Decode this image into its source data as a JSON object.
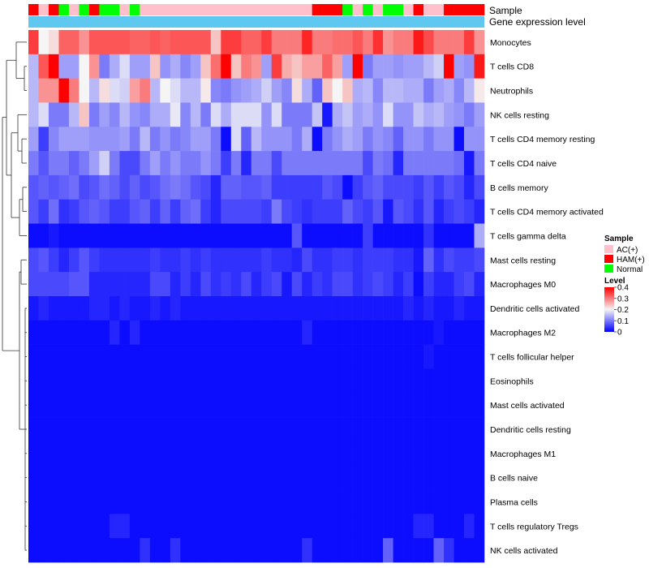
{
  "chart_data": {
    "type": "heatmap",
    "rows": [
      "Monocytes",
      "T cells CD8",
      "Neutrophils",
      "NK cells resting",
      "T cells CD4 memory resting",
      "T cells CD4 naive",
      "B cells memory",
      "T cells CD4 memory activated",
      "T cells gamma delta",
      "Mast cells resting",
      "Macrophages M0",
      "Dendritic cells activated",
      "Macrophages M2",
      "T cells follicular helper",
      "Eosinophils",
      "Mast cells activated",
      "Dendritic cells resting",
      "Macrophages M1",
      "B cells naive",
      "Plasma cells",
      "T cells regulatory  Tregs",
      "NK cells activated"
    ],
    "column_annotation_sample": [
      "HAM(+)",
      "AC(+)",
      "HAM(+)",
      "Normal",
      "AC(+)",
      "Normal",
      "HAM(+)",
      "Normal",
      "Normal",
      "AC(+)",
      "Normal",
      "AC(+)",
      "AC(+)",
      "AC(+)",
      "AC(+)",
      "AC(+)",
      "AC(+)",
      "AC(+)",
      "AC(+)",
      "AC(+)",
      "AC(+)",
      "AC(+)",
      "AC(+)",
      "AC(+)",
      "AC(+)",
      "AC(+)",
      "AC(+)",
      "AC(+)",
      "HAM(+)",
      "HAM(+)",
      "HAM(+)",
      "Normal",
      "AC(+)",
      "Normal",
      "AC(+)",
      "Normal",
      "Normal",
      "AC(+)",
      "HAM(+)",
      "AC(+)",
      "AC(+)",
      "HAM(+)",
      "HAM(+)",
      "HAM(+)",
      "HAM(+)"
    ],
    "column_annotation_gene_expression": "uniform",
    "values": [
      [
        0.35,
        0.2,
        0.22,
        0.32,
        0.32,
        0.28,
        0.33,
        0.33,
        0.33,
        0.33,
        0.32,
        0.32,
        0.33,
        0.32,
        0.33,
        0.33,
        0.33,
        0.33,
        0.24,
        0.35,
        0.35,
        0.32,
        0.32,
        0.35,
        0.3,
        0.3,
        0.3,
        0.37,
        0.3,
        0.3,
        0.31,
        0.31,
        0.33,
        0.3,
        0.36,
        0.28,
        0.3,
        0.3,
        0.38,
        0.34,
        0.3,
        0.3,
        0.3,
        0.35,
        0.28
      ],
      [
        0.15,
        0.33,
        0.4,
        0.13,
        0.13,
        0.2,
        0.28,
        0.1,
        0.14,
        0.18,
        0.13,
        0.13,
        0.24,
        0.12,
        0.14,
        0.11,
        0.13,
        0.24,
        0.31,
        0.4,
        0.24,
        0.3,
        0.28,
        0.13,
        0.35,
        0.26,
        0.24,
        0.27,
        0.27,
        0.32,
        0.27,
        0.13,
        0.4,
        0.1,
        0.13,
        0.13,
        0.12,
        0.13,
        0.13,
        0.15,
        0.17,
        0.4,
        0.13,
        0.12,
        0.38
      ],
      [
        0.15,
        0.28,
        0.28,
        0.4,
        0.3,
        0.2,
        0.15,
        0.22,
        0.18,
        0.17,
        0.27,
        0.3,
        0.15,
        0.2,
        0.18,
        0.15,
        0.15,
        0.21,
        0.11,
        0.1,
        0.12,
        0.13,
        0.14,
        0.17,
        0.13,
        0.11,
        0.22,
        0.14,
        0.08,
        0.24,
        0.2,
        0.24,
        0.14,
        0.15,
        0.11,
        0.15,
        0.15,
        0.14,
        0.14,
        0.1,
        0.13,
        0.14,
        0.11,
        0.15,
        0.21
      ],
      [
        0.15,
        0.18,
        0.1,
        0.1,
        0.15,
        0.24,
        0.1,
        0.13,
        0.11,
        0.15,
        0.12,
        0.11,
        0.14,
        0.14,
        0.19,
        0.11,
        0.15,
        0.1,
        0.18,
        0.14,
        0.18,
        0.18,
        0.18,
        0.12,
        0.18,
        0.1,
        0.1,
        0.1,
        0.16,
        0.02,
        0.14,
        0.16,
        0.13,
        0.14,
        0.12,
        0.18,
        0.12,
        0.12,
        0.16,
        0.14,
        0.15,
        0.13,
        0.12,
        0.1,
        0.13
      ],
      [
        0.13,
        0.05,
        0.11,
        0.13,
        0.13,
        0.13,
        0.12,
        0.12,
        0.12,
        0.13,
        0.1,
        0.15,
        0.1,
        0.12,
        0.1,
        0.11,
        0.13,
        0.13,
        0.1,
        0.01,
        0.18,
        0.08,
        0.15,
        0.12,
        0.12,
        0.12,
        0.1,
        0.14,
        0.01,
        0.1,
        0.12,
        0.14,
        0.13,
        0.1,
        0.12,
        0.11,
        0.08,
        0.12,
        0.12,
        0.1,
        0.12,
        0.12,
        0.01,
        0.12,
        0.12
      ],
      [
        0.1,
        0.07,
        0.1,
        0.1,
        0.08,
        0.1,
        0.13,
        0.17,
        0.1,
        0.06,
        0.06,
        0.1,
        0.13,
        0.1,
        0.12,
        0.1,
        0.1,
        0.12,
        0.1,
        0.05,
        0.1,
        0.03,
        0.1,
        0.1,
        0.06,
        0.1,
        0.1,
        0.1,
        0.1,
        0.1,
        0.1,
        0.1,
        0.1,
        0.06,
        0.1,
        0.09,
        0.03,
        0.1,
        0.1,
        0.1,
        0.1,
        0.1,
        0.09,
        0.02,
        0.1
      ],
      [
        0.07,
        0.08,
        0.07,
        0.08,
        0.09,
        0.06,
        0.07,
        0.09,
        0.08,
        0.06,
        0.08,
        0.06,
        0.07,
        0.09,
        0.1,
        0.09,
        0.07,
        0.06,
        0.03,
        0.08,
        0.08,
        0.07,
        0.07,
        0.08,
        0.05,
        0.05,
        0.05,
        0.05,
        0.05,
        0.07,
        0.06,
        0.01,
        0.05,
        0.07,
        0.08,
        0.06,
        0.06,
        0.06,
        0.05,
        0.07,
        0.05,
        0.07,
        0.06,
        0.03,
        0.06
      ],
      [
        0.07,
        0.05,
        0.09,
        0.04,
        0.05,
        0.07,
        0.08,
        0.07,
        0.05,
        0.05,
        0.07,
        0.08,
        0.05,
        0.08,
        0.05,
        0.08,
        0.09,
        0.05,
        0.03,
        0.06,
        0.06,
        0.06,
        0.06,
        0.05,
        0.1,
        0.06,
        0.05,
        0.04,
        0.05,
        0.05,
        0.05,
        0.08,
        0.06,
        0.05,
        0.07,
        0.02,
        0.07,
        0.06,
        0.04,
        0.07,
        0.03,
        0.05,
        0.06,
        0.05,
        0.03
      ],
      [
        0.01,
        0.01,
        0.02,
        0.01,
        0.01,
        0.01,
        0.01,
        0.01,
        0.01,
        0.01,
        0.01,
        0.01,
        0.01,
        0.01,
        0.01,
        0.01,
        0.01,
        0.01,
        0.01,
        0.01,
        0.01,
        0.01,
        0.01,
        0.01,
        0.01,
        0.01,
        0.07,
        0.01,
        0.01,
        0.01,
        0.01,
        0.01,
        0.01,
        0.05,
        0.01,
        0.01,
        0.01,
        0.01,
        0.01,
        0.04,
        0.01,
        0.01,
        0.01,
        0.01,
        0.14
      ],
      [
        0.06,
        0.07,
        0.05,
        0.03,
        0.05,
        0.07,
        0.05,
        0.04,
        0.04,
        0.04,
        0.04,
        0.04,
        0.05,
        0.04,
        0.04,
        0.05,
        0.04,
        0.05,
        0.04,
        0.04,
        0.04,
        0.04,
        0.04,
        0.05,
        0.04,
        0.04,
        0.03,
        0.06,
        0.04,
        0.04,
        0.05,
        0.05,
        0.04,
        0.05,
        0.05,
        0.05,
        0.04,
        0.04,
        0.02,
        0.08,
        0.04,
        0.06,
        0.05,
        0.05,
        0.06
      ],
      [
        0.06,
        0.06,
        0.06,
        0.06,
        0.07,
        0.07,
        0.03,
        0.03,
        0.03,
        0.03,
        0.03,
        0.03,
        0.06,
        0.06,
        0.03,
        0.05,
        0.03,
        0.06,
        0.04,
        0.05,
        0.04,
        0.06,
        0.03,
        0.05,
        0.06,
        0.02,
        0.06,
        0.03,
        0.05,
        0.04,
        0.06,
        0.06,
        0.04,
        0.05,
        0.06,
        0.05,
        0.03,
        0.05,
        0.01,
        0.05,
        0.03,
        0.03,
        0.05,
        0.06,
        0.03
      ],
      [
        0.02,
        0.03,
        0.02,
        0.02,
        0.02,
        0.02,
        0.03,
        0.03,
        0.02,
        0.03,
        0.02,
        0.02,
        0.03,
        0.02,
        0.03,
        0.02,
        0.02,
        0.02,
        0.02,
        0.02,
        0.02,
        0.02,
        0.02,
        0.02,
        0.02,
        0.02,
        0.02,
        0.02,
        0.02,
        0.02,
        0.02,
        0.02,
        0.02,
        0.02,
        0.02,
        0.02,
        0.02,
        0.03,
        0.02,
        0.03,
        0.02,
        0.02,
        0.03,
        0.02,
        0.02
      ],
      [
        0.01,
        0.01,
        0.01,
        0.01,
        0.01,
        0.01,
        0.01,
        0.01,
        0.03,
        0.01,
        0.03,
        0.01,
        0.01,
        0.01,
        0.01,
        0.01,
        0.01,
        0.01,
        0.01,
        0.01,
        0.01,
        0.01,
        0.01,
        0.01,
        0.01,
        0.01,
        0.01,
        0.03,
        0.01,
        0.01,
        0.01,
        0.01,
        0.01,
        0.01,
        0.01,
        0.01,
        0.01,
        0.01,
        0.01,
        0.01,
        0.02,
        0.01,
        0.01,
        0.01,
        0.01
      ],
      [
        0.01,
        0.01,
        0.01,
        0.01,
        0.01,
        0.01,
        0.01,
        0.01,
        0.01,
        0.01,
        0.01,
        0.01,
        0.01,
        0.01,
        0.01,
        0.01,
        0.01,
        0.01,
        0.01,
        0.01,
        0.01,
        0.01,
        0.01,
        0.01,
        0.01,
        0.01,
        0.01,
        0.01,
        0.01,
        0.01,
        0.01,
        0.01,
        0.01,
        0.01,
        0.01,
        0.01,
        0.01,
        0.01,
        0.01,
        0.02,
        0.01,
        0.01,
        0.01,
        0.01,
        0.01
      ],
      [
        0.01,
        0.01,
        0.01,
        0.01,
        0.01,
        0.01,
        0.01,
        0.01,
        0.01,
        0.01,
        0.01,
        0.01,
        0.01,
        0.01,
        0.01,
        0.01,
        0.01,
        0.01,
        0.01,
        0.01,
        0.01,
        0.01,
        0.01,
        0.01,
        0.01,
        0.01,
        0.01,
        0.01,
        0.01,
        0.01,
        0.01,
        0.01,
        0.01,
        0.01,
        0.01,
        0.01,
        0.01,
        0.01,
        0.01,
        0.01,
        0.01,
        0.01,
        0.01,
        0.01,
        0.01
      ],
      [
        0.01,
        0.01,
        0.01,
        0.01,
        0.01,
        0.01,
        0.01,
        0.01,
        0.01,
        0.01,
        0.01,
        0.01,
        0.01,
        0.01,
        0.01,
        0.01,
        0.01,
        0.01,
        0.01,
        0.01,
        0.01,
        0.01,
        0.01,
        0.01,
        0.01,
        0.01,
        0.01,
        0.01,
        0.01,
        0.01,
        0.01,
        0.01,
        0.01,
        0.01,
        0.01,
        0.01,
        0.01,
        0.01,
        0.01,
        0.01,
        0.01,
        0.01,
        0.01,
        0.01,
        0.01
      ],
      [
        0.01,
        0.01,
        0.01,
        0.01,
        0.01,
        0.01,
        0.01,
        0.01,
        0.01,
        0.01,
        0.01,
        0.01,
        0.01,
        0.01,
        0.01,
        0.01,
        0.01,
        0.01,
        0.01,
        0.01,
        0.01,
        0.01,
        0.01,
        0.01,
        0.01,
        0.01,
        0.01,
        0.01,
        0.01,
        0.01,
        0.01,
        0.01,
        0.01,
        0.01,
        0.01,
        0.01,
        0.01,
        0.01,
        0.01,
        0.01,
        0.01,
        0.01,
        0.01,
        0.01,
        0.01
      ],
      [
        0.01,
        0.01,
        0.01,
        0.01,
        0.01,
        0.01,
        0.01,
        0.01,
        0.01,
        0.01,
        0.01,
        0.01,
        0.01,
        0.01,
        0.01,
        0.01,
        0.01,
        0.01,
        0.01,
        0.01,
        0.01,
        0.01,
        0.01,
        0.01,
        0.01,
        0.01,
        0.01,
        0.01,
        0.01,
        0.01,
        0.01,
        0.01,
        0.01,
        0.01,
        0.01,
        0.01,
        0.01,
        0.01,
        0.01,
        0.01,
        0.01,
        0.01,
        0.01,
        0.01,
        0.01
      ],
      [
        0.01,
        0.01,
        0.01,
        0.01,
        0.01,
        0.01,
        0.01,
        0.01,
        0.01,
        0.01,
        0.01,
        0.01,
        0.01,
        0.01,
        0.01,
        0.01,
        0.01,
        0.01,
        0.01,
        0.01,
        0.01,
        0.01,
        0.01,
        0.01,
        0.01,
        0.01,
        0.01,
        0.01,
        0.01,
        0.01,
        0.01,
        0.01,
        0.01,
        0.01,
        0.01,
        0.01,
        0.01,
        0.01,
        0.01,
        0.01,
        0.01,
        0.01,
        0.01,
        0.01,
        0.01
      ],
      [
        0.01,
        0.01,
        0.01,
        0.01,
        0.01,
        0.01,
        0.01,
        0.01,
        0.01,
        0.01,
        0.01,
        0.01,
        0.01,
        0.01,
        0.01,
        0.01,
        0.01,
        0.01,
        0.01,
        0.01,
        0.01,
        0.01,
        0.01,
        0.01,
        0.01,
        0.01,
        0.01,
        0.01,
        0.01,
        0.01,
        0.01,
        0.01,
        0.01,
        0.01,
        0.01,
        0.01,
        0.01,
        0.01,
        0.01,
        0.01,
        0.01,
        0.01,
        0.01,
        0.01,
        0.01
      ],
      [
        0.01,
        0.01,
        0.01,
        0.01,
        0.01,
        0.01,
        0.01,
        0.01,
        0.03,
        0.03,
        0.01,
        0.01,
        0.01,
        0.01,
        0.01,
        0.01,
        0.01,
        0.01,
        0.01,
        0.01,
        0.01,
        0.01,
        0.01,
        0.01,
        0.01,
        0.01,
        0.01,
        0.01,
        0.01,
        0.01,
        0.01,
        0.01,
        0.01,
        0.01,
        0.01,
        0.01,
        0.01,
        0.01,
        0.03,
        0.03,
        0.01,
        0.01,
        0.01,
        0.03,
        0.01
      ],
      [
        0.01,
        0.01,
        0.01,
        0.01,
        0.01,
        0.01,
        0.01,
        0.01,
        0.01,
        0.01,
        0.01,
        0.04,
        0.01,
        0.01,
        0.04,
        0.01,
        0.01,
        0.01,
        0.01,
        0.01,
        0.01,
        0.01,
        0.01,
        0.01,
        0.01,
        0.01,
        0.01,
        0.04,
        0.01,
        0.01,
        0.01,
        0.01,
        0.01,
        0.01,
        0.01,
        0.08,
        0.01,
        0.01,
        0.01,
        0.01,
        0.08,
        0.04,
        0.01,
        0.01,
        0.01
      ]
    ],
    "annotation_labels": [
      "Sample",
      "Gene expression level"
    ],
    "legend": {
      "sample_title": "Sample",
      "sample_entries": [
        {
          "label": "AC(+)",
          "color": "#ffc0cb"
        },
        {
          "label": "HAM(+)",
          "color": "#ff0000"
        },
        {
          "label": "Normal",
          "color": "#00ff00"
        }
      ],
      "level_title": "Level",
      "level_ticks": [
        {
          "label": "0.4",
          "value": 0.4
        },
        {
          "label": "0.3",
          "value": 0.3
        },
        {
          "label": "0.2",
          "value": 0.2
        },
        {
          "label": "0.1",
          "value": 0.1
        },
        {
          "label": "0",
          "value": 0
        }
      ]
    },
    "color_scale": {
      "low": "#0000ff",
      "mid": "#f5f5f5",
      "high": "#ff0000",
      "min": 0,
      "mid_value": 0.2,
      "max": 0.4
    },
    "gene_expression_color": "#5ec8f0"
  }
}
